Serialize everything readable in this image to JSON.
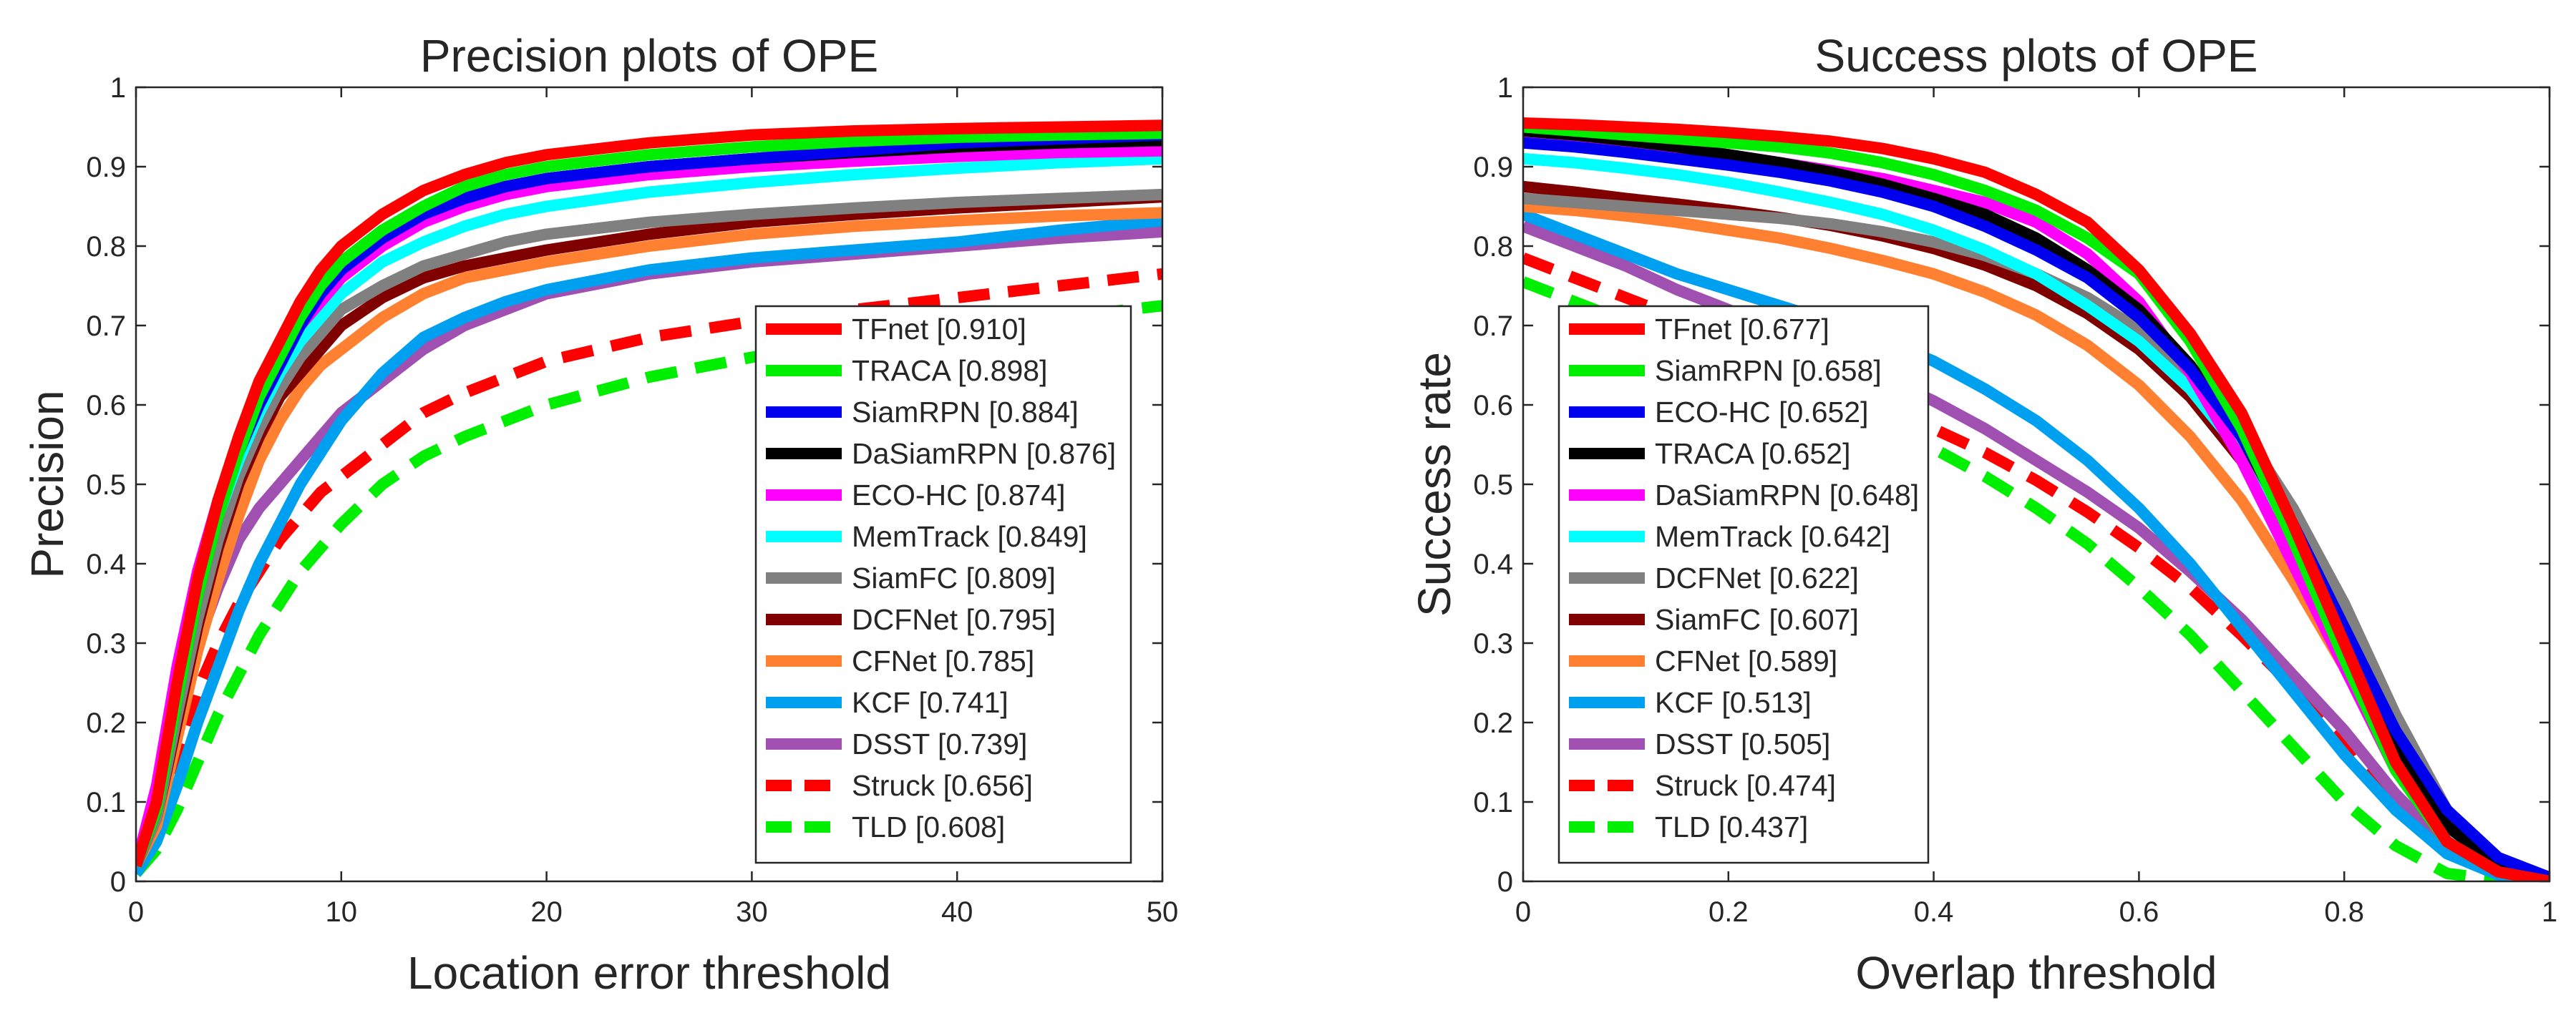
{
  "chart_data": [
    {
      "type": "line",
      "title": "Precision plots of OPE",
      "xlabel": "Location error threshold",
      "ylabel": "Precision",
      "xlim": [
        0,
        50
      ],
      "ylim": [
        0,
        1
      ],
      "x_ticks": [
        "0",
        "10",
        "20",
        "30",
        "40",
        "50"
      ],
      "y_ticks": [
        "0",
        "0.1",
        "0.2",
        "0.3",
        "0.4",
        "0.5",
        "0.6",
        "0.7",
        "0.8",
        "0.9",
        "1"
      ],
      "legend_position": "bottom-right",
      "x": [
        0,
        1,
        2,
        3,
        4,
        5,
        6,
        7,
        8,
        9,
        10,
        12,
        14,
        16,
        18,
        20,
        25,
        30,
        35,
        40,
        45,
        50
      ],
      "series": [
        {
          "name": "TFnet",
          "score": "[0.910]",
          "color": "#ff0000",
          "dashed": false,
          "values": [
            0.02,
            0.1,
            0.25,
            0.38,
            0.48,
            0.56,
            0.63,
            0.68,
            0.73,
            0.77,
            0.8,
            0.84,
            0.87,
            0.89,
            0.905,
            0.915,
            0.93,
            0.94,
            0.945,
            0.948,
            0.95,
            0.952
          ]
        },
        {
          "name": "TRACA",
          "score": "[0.898]",
          "color": "#00ee00",
          "dashed": false,
          "values": [
            0.02,
            0.09,
            0.23,
            0.36,
            0.46,
            0.54,
            0.61,
            0.66,
            0.71,
            0.75,
            0.78,
            0.82,
            0.85,
            0.875,
            0.89,
            0.9,
            0.915,
            0.925,
            0.932,
            0.937,
            0.94,
            0.942
          ]
        },
        {
          "name": "SiamRPN",
          "score": "[0.884]",
          "color": "#0000ee",
          "dashed": false,
          "values": [
            0.02,
            0.09,
            0.23,
            0.36,
            0.46,
            0.54,
            0.6,
            0.65,
            0.7,
            0.74,
            0.77,
            0.81,
            0.84,
            0.86,
            0.875,
            0.885,
            0.9,
            0.91,
            0.92,
            0.93,
            0.935,
            0.94
          ]
        },
        {
          "name": "DaSiamRPN",
          "score": "[0.876]",
          "color": "#000000",
          "dashed": false,
          "values": [
            0.02,
            0.09,
            0.24,
            0.37,
            0.47,
            0.55,
            0.61,
            0.66,
            0.71,
            0.75,
            0.78,
            0.82,
            0.845,
            0.86,
            0.875,
            0.885,
            0.9,
            0.91,
            0.918,
            0.925,
            0.93,
            0.933
          ]
        },
        {
          "name": "ECO-HC",
          "score": "[0.874]",
          "color": "#ff00ff",
          "dashed": false,
          "values": [
            0.02,
            0.12,
            0.27,
            0.39,
            0.48,
            0.55,
            0.61,
            0.66,
            0.7,
            0.73,
            0.76,
            0.8,
            0.83,
            0.85,
            0.865,
            0.875,
            0.89,
            0.9,
            0.907,
            0.913,
            0.918,
            0.92
          ]
        },
        {
          "name": "MemTrack",
          "score": "[0.849]",
          "color": "#00ffff",
          "dashed": false,
          "values": [
            0.02,
            0.09,
            0.23,
            0.36,
            0.46,
            0.53,
            0.59,
            0.64,
            0.68,
            0.71,
            0.74,
            0.78,
            0.805,
            0.825,
            0.84,
            0.85,
            0.868,
            0.88,
            0.89,
            0.898,
            0.905,
            0.91
          ]
        },
        {
          "name": "SiamFC",
          "score": "[0.809]",
          "color": "#808080",
          "dashed": false,
          "values": [
            0.02,
            0.08,
            0.21,
            0.33,
            0.43,
            0.51,
            0.57,
            0.62,
            0.66,
            0.69,
            0.72,
            0.75,
            0.775,
            0.79,
            0.805,
            0.815,
            0.83,
            0.84,
            0.848,
            0.855,
            0.86,
            0.865
          ]
        },
        {
          "name": "DCFNet",
          "score": "[0.795]",
          "color": "#800000",
          "dashed": false,
          "values": [
            0.02,
            0.08,
            0.2,
            0.32,
            0.42,
            0.5,
            0.56,
            0.61,
            0.64,
            0.67,
            0.7,
            0.735,
            0.76,
            0.775,
            0.785,
            0.795,
            0.815,
            0.83,
            0.84,
            0.848,
            0.855,
            0.862
          ]
        },
        {
          "name": "CFNet",
          "score": "[0.785]",
          "color": "#ff8030",
          "dashed": false,
          "values": [
            0.02,
            0.07,
            0.18,
            0.29,
            0.38,
            0.46,
            0.53,
            0.58,
            0.62,
            0.65,
            0.67,
            0.71,
            0.74,
            0.76,
            0.77,
            0.78,
            0.8,
            0.815,
            0.825,
            0.832,
            0.838,
            0.842
          ]
        },
        {
          "name": "KCF",
          "score": "[0.741]",
          "color": "#00a0f0",
          "dashed": false,
          "values": [
            0.01,
            0.05,
            0.12,
            0.2,
            0.27,
            0.34,
            0.4,
            0.45,
            0.5,
            0.54,
            0.58,
            0.64,
            0.685,
            0.71,
            0.73,
            0.745,
            0.77,
            0.785,
            0.795,
            0.805,
            0.82,
            0.832
          ]
        },
        {
          "name": "DSST",
          "score": "[0.739]",
          "color": "#a050b0",
          "dashed": false,
          "values": [
            0.02,
            0.09,
            0.2,
            0.3,
            0.37,
            0.43,
            0.47,
            0.5,
            0.53,
            0.56,
            0.59,
            0.63,
            0.67,
            0.7,
            0.72,
            0.74,
            0.765,
            0.78,
            0.79,
            0.8,
            0.81,
            0.818
          ]
        },
        {
          "name": "Struck",
          "score": "[0.656]",
          "color": "#ff0000",
          "dashed": true,
          "values": [
            0.02,
            0.06,
            0.15,
            0.24,
            0.3,
            0.35,
            0.39,
            0.43,
            0.46,
            0.49,
            0.51,
            0.55,
            0.59,
            0.615,
            0.635,
            0.655,
            0.685,
            0.705,
            0.72,
            0.735,
            0.75,
            0.765
          ]
        },
        {
          "name": "TLD",
          "score": "[0.608]",
          "color": "#00ee00",
          "dashed": true,
          "values": [
            0.01,
            0.04,
            0.09,
            0.15,
            0.21,
            0.26,
            0.31,
            0.35,
            0.39,
            0.42,
            0.45,
            0.5,
            0.535,
            0.56,
            0.58,
            0.6,
            0.635,
            0.66,
            0.68,
            0.695,
            0.71,
            0.725
          ]
        }
      ]
    },
    {
      "type": "line",
      "title": "Success plots of OPE",
      "xlabel": "Overlap threshold",
      "ylabel": "Success rate",
      "xlim": [
        0,
        1
      ],
      "ylim": [
        0,
        1
      ],
      "x_ticks": [
        "0",
        "0.2",
        "0.4",
        "0.6",
        "0.8",
        "1"
      ],
      "y_ticks": [
        "0",
        "0.1",
        "0.2",
        "0.3",
        "0.4",
        "0.5",
        "0.6",
        "0.7",
        "0.8",
        "0.9",
        "1"
      ],
      "legend_position": "bottom-left",
      "x": [
        0,
        0.05,
        0.1,
        0.15,
        0.2,
        0.25,
        0.3,
        0.35,
        0.4,
        0.45,
        0.5,
        0.55,
        0.6,
        0.65,
        0.7,
        0.75,
        0.8,
        0.85,
        0.9,
        0.95,
        1.0
      ],
      "series": [
        {
          "name": "TFnet",
          "score": "[0.677]",
          "color": "#ff0000",
          "dashed": false,
          "values": [
            0.955,
            0.953,
            0.95,
            0.947,
            0.943,
            0.938,
            0.932,
            0.923,
            0.91,
            0.893,
            0.865,
            0.83,
            0.77,
            0.69,
            0.59,
            0.45,
            0.3,
            0.15,
            0.05,
            0.012,
            0.0
          ]
        },
        {
          "name": "SiamRPN",
          "score": "[0.658]",
          "color": "#00ee00",
          "dashed": false,
          "values": [
            0.95,
            0.945,
            0.94,
            0.935,
            0.93,
            0.925,
            0.917,
            0.905,
            0.89,
            0.87,
            0.845,
            0.81,
            0.765,
            0.68,
            0.57,
            0.43,
            0.28,
            0.14,
            0.05,
            0.012,
            0.0
          ]
        },
        {
          "name": "ECO-HC",
          "score": "[0.652]",
          "color": "#0000ee",
          "dashed": false,
          "values": [
            0.93,
            0.925,
            0.918,
            0.91,
            0.902,
            0.893,
            0.882,
            0.868,
            0.85,
            0.825,
            0.795,
            0.76,
            0.71,
            0.645,
            0.56,
            0.45,
            0.32,
            0.19,
            0.09,
            0.03,
            0.005
          ]
        },
        {
          "name": "TRACA",
          "score": "[0.652]",
          "color": "#000000",
          "dashed": false,
          "values": [
            0.945,
            0.94,
            0.933,
            0.925,
            0.915,
            0.905,
            0.893,
            0.878,
            0.86,
            0.84,
            0.81,
            0.77,
            0.72,
            0.65,
            0.56,
            0.44,
            0.31,
            0.17,
            0.07,
            0.02,
            0.0
          ]
        },
        {
          "name": "DaSiamRPN",
          "score": "[0.648]",
          "color": "#ff00ff",
          "dashed": false,
          "values": [
            0.935,
            0.93,
            0.925,
            0.92,
            0.915,
            0.905,
            0.895,
            0.885,
            0.87,
            0.855,
            0.83,
            0.79,
            0.73,
            0.64,
            0.53,
            0.4,
            0.27,
            0.14,
            0.05,
            0.012,
            0.0
          ]
        },
        {
          "name": "MemTrack",
          "score": "[0.642]",
          "color": "#00ffff",
          "dashed": false,
          "values": [
            0.91,
            0.905,
            0.898,
            0.89,
            0.88,
            0.868,
            0.855,
            0.84,
            0.82,
            0.795,
            0.765,
            0.725,
            0.68,
            0.62,
            0.54,
            0.44,
            0.31,
            0.17,
            0.07,
            0.015,
            0.0
          ]
        },
        {
          "name": "DCFNet",
          "score": "[0.622]",
          "color": "#808080",
          "dashed": false,
          "values": [
            0.86,
            0.855,
            0.85,
            0.845,
            0.84,
            0.835,
            0.828,
            0.818,
            0.805,
            0.788,
            0.765,
            0.735,
            0.695,
            0.64,
            0.57,
            0.47,
            0.35,
            0.21,
            0.09,
            0.02,
            0.0
          ]
        },
        {
          "name": "SiamFC",
          "score": "[0.607]",
          "color": "#800000",
          "dashed": false,
          "values": [
            0.875,
            0.868,
            0.86,
            0.853,
            0.845,
            0.836,
            0.826,
            0.813,
            0.797,
            0.776,
            0.75,
            0.715,
            0.67,
            0.61,
            0.53,
            0.43,
            0.31,
            0.18,
            0.07,
            0.015,
            0.0
          ]
        },
        {
          "name": "CFNet",
          "score": "[0.589]",
          "color": "#ff8030",
          "dashed": false,
          "values": [
            0.85,
            0.845,
            0.838,
            0.83,
            0.82,
            0.81,
            0.797,
            0.782,
            0.765,
            0.742,
            0.713,
            0.675,
            0.625,
            0.56,
            0.48,
            0.38,
            0.27,
            0.15,
            0.06,
            0.012,
            0.0
          ]
        },
        {
          "name": "KCF",
          "score": "[0.513]",
          "color": "#00a0f0",
          "dashed": false,
          "values": [
            0.84,
            0.815,
            0.79,
            0.765,
            0.745,
            0.725,
            0.705,
            0.682,
            0.655,
            0.62,
            0.58,
            0.53,
            0.47,
            0.4,
            0.32,
            0.24,
            0.16,
            0.09,
            0.035,
            0.008,
            0.0
          ]
        },
        {
          "name": "DSST",
          "score": "[0.505]",
          "color": "#a050b0",
          "dashed": false,
          "values": [
            0.825,
            0.8,
            0.775,
            0.745,
            0.72,
            0.695,
            0.665,
            0.635,
            0.605,
            0.57,
            0.53,
            0.49,
            0.445,
            0.39,
            0.33,
            0.26,
            0.19,
            0.11,
            0.045,
            0.01,
            0.0
          ]
        },
        {
          "name": "Struck",
          "score": "[0.474]",
          "color": "#ff0000",
          "dashed": true,
          "values": [
            0.785,
            0.76,
            0.735,
            0.71,
            0.685,
            0.66,
            0.635,
            0.605,
            0.57,
            0.54,
            0.505,
            0.465,
            0.42,
            0.37,
            0.31,
            0.245,
            0.18,
            0.105,
            0.04,
            0.008,
            0.0
          ]
        },
        {
          "name": "TLD",
          "score": "[0.437]",
          "color": "#00ee00",
          "dashed": true,
          "values": [
            0.755,
            0.73,
            0.705,
            0.68,
            0.655,
            0.63,
            0.605,
            0.575,
            0.545,
            0.51,
            0.47,
            0.425,
            0.37,
            0.31,
            0.24,
            0.17,
            0.1,
            0.045,
            0.01,
            0.002,
            0.0
          ]
        }
      ]
    }
  ]
}
